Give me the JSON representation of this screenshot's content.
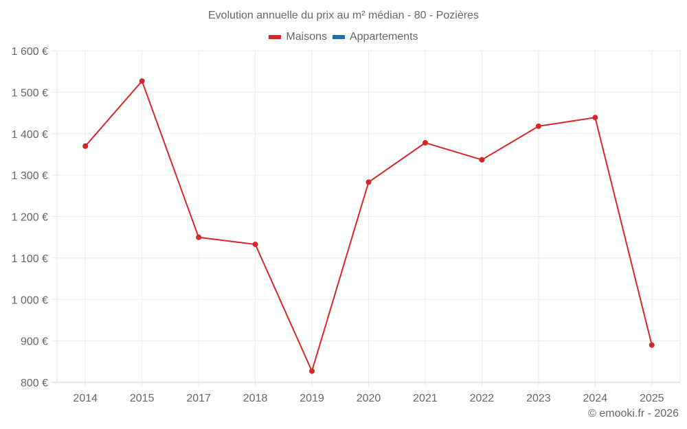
{
  "chart_data": {
    "type": "line",
    "title": "Evolution annuelle du prix au m² médian - 80 - Pozières",
    "xlabel": "",
    "ylabel": "",
    "categories": [
      "2014",
      "2015",
      "2017",
      "2018",
      "2019",
      "2020",
      "2021",
      "2022",
      "2023",
      "2024",
      "2025"
    ],
    "series": [
      {
        "name": "Maisons",
        "color": "#d62728",
        "values": [
          1370,
          1527,
          1150,
          1133,
          827,
          1283,
          1378,
          1337,
          1418,
          1439,
          890
        ]
      },
      {
        "name": "Appartements",
        "color": "#1f6fa8",
        "values": []
      }
    ],
    "ylim": [
      800,
      1600
    ],
    "yticks": [
      800,
      900,
      1000,
      1100,
      1200,
      1300,
      1400,
      1500,
      1600
    ],
    "ytick_labels": [
      "800 €",
      "900 €",
      "1 000 €",
      "1 100 €",
      "1 200 €",
      "1 300 €",
      "1 400 €",
      "1 500 €",
      "1 600 €"
    ],
    "grid": true,
    "legend_position": "top"
  },
  "legend": {
    "items": [
      {
        "label": "Maisons",
        "color": "#d62728"
      },
      {
        "label": "Appartements",
        "color": "#1f6fa8"
      }
    ]
  },
  "credit": "© emooki.fr - 2026"
}
